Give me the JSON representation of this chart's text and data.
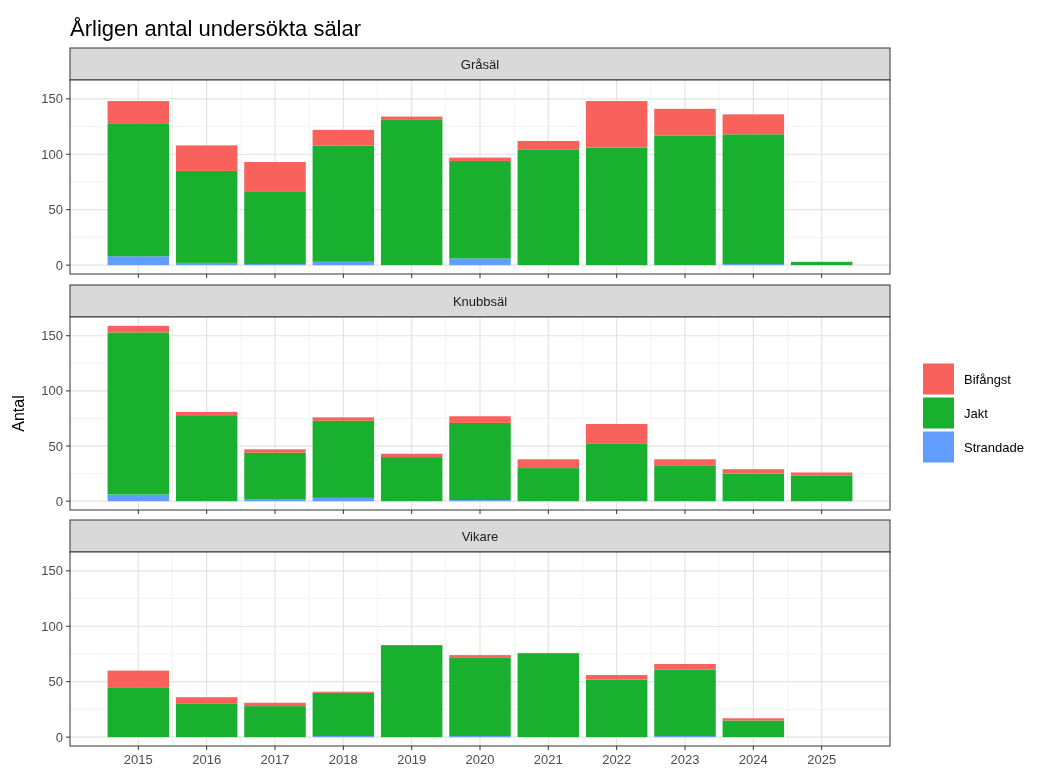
{
  "chart_data": [
    {
      "type": "bar",
      "title": "Årligen antal undersökta sälar",
      "subtitle": "Gråsäl",
      "stacked": true,
      "x": [
        2015,
        2016,
        2017,
        2018,
        2019,
        2020,
        2021,
        2022,
        2023,
        2024,
        2025
      ],
      "xlim": [
        2014,
        2026
      ],
      "xticks": [
        2015,
        2016,
        2017,
        2018,
        2019,
        2020,
        2021,
        2022,
        2023,
        2024,
        2025
      ],
      "ylim": [
        -8,
        167
      ],
      "yticks": [
        0,
        50,
        100,
        150
      ],
      "grid": true,
      "tick_labels": "y",
      "series": [
        {
          "color": "#619cff",
          "values": [
            8,
            2,
            1,
            3,
            0,
            6,
            0,
            0,
            0,
            1,
            0
          ]
        },
        {
          "color": "#19b02f",
          "values": [
            120,
            83,
            65,
            105,
            131,
            88,
            104,
            106,
            117,
            117,
            3
          ]
        },
        {
          "color": "#f8615c",
          "values": [
            20,
            23,
            27,
            14,
            3,
            3,
            8,
            42,
            24,
            18,
            0
          ]
        }
      ]
    },
    {
      "type": "bar",
      "subtitle": "Knubbsäl",
      "ylabel": "Antal",
      "legend": "right",
      "stacked": true,
      "x": [
        2015,
        2016,
        2017,
        2018,
        2019,
        2020,
        2021,
        2022,
        2023,
        2024,
        2025
      ],
      "xlim": [
        2014,
        2026
      ],
      "xticks": [
        2015,
        2016,
        2017,
        2018,
        2019,
        2020,
        2021,
        2022,
        2023,
        2024,
        2025
      ],
      "ylim": [
        -8,
        167
      ],
      "yticks": [
        0,
        50,
        100,
        150
      ],
      "grid": true,
      "tick_labels": "y",
      "series": [
        {
          "name": "Strandade",
          "color": "#619cff",
          "values": [
            6,
            0,
            2,
            3,
            0,
            1,
            0,
            0,
            0,
            0,
            0
          ]
        },
        {
          "name": "Jakt",
          "color": "#19b02f",
          "values": [
            147,
            78,
            42,
            70,
            40,
            70,
            30,
            52,
            32,
            25,
            23
          ]
        },
        {
          "name": "Bifångst",
          "color": "#f8615c",
          "values": [
            6,
            3,
            3,
            3,
            3,
            6,
            8,
            18,
            6,
            4,
            3
          ]
        }
      ]
    },
    {
      "type": "bar",
      "subtitle": "Vikare",
      "stacked": true,
      "x": [
        2015,
        2016,
        2017,
        2018,
        2019,
        2020,
        2021,
        2022,
        2023,
        2024,
        2025
      ],
      "xlim": [
        2014,
        2026
      ],
      "xticks": [
        2015,
        2016,
        2017,
        2018,
        2019,
        2020,
        2021,
        2022,
        2023,
        2024,
        2025
      ],
      "ylim": [
        -8,
        167
      ],
      "yticks": [
        0,
        50,
        100,
        150
      ],
      "grid": true,
      "series": [
        {
          "color": "#619cff",
          "values": [
            0,
            0,
            0,
            1,
            0,
            1,
            0,
            0,
            1,
            0,
            0
          ]
        },
        {
          "color": "#19b02f",
          "values": [
            45,
            30,
            28,
            39,
            83,
            71,
            75,
            52,
            60,
            15,
            0
          ]
        },
        {
          "color": "#f8615c",
          "values": [
            15,
            6,
            3,
            1,
            0,
            2,
            1,
            4,
            5,
            2,
            0
          ]
        }
      ]
    }
  ]
}
